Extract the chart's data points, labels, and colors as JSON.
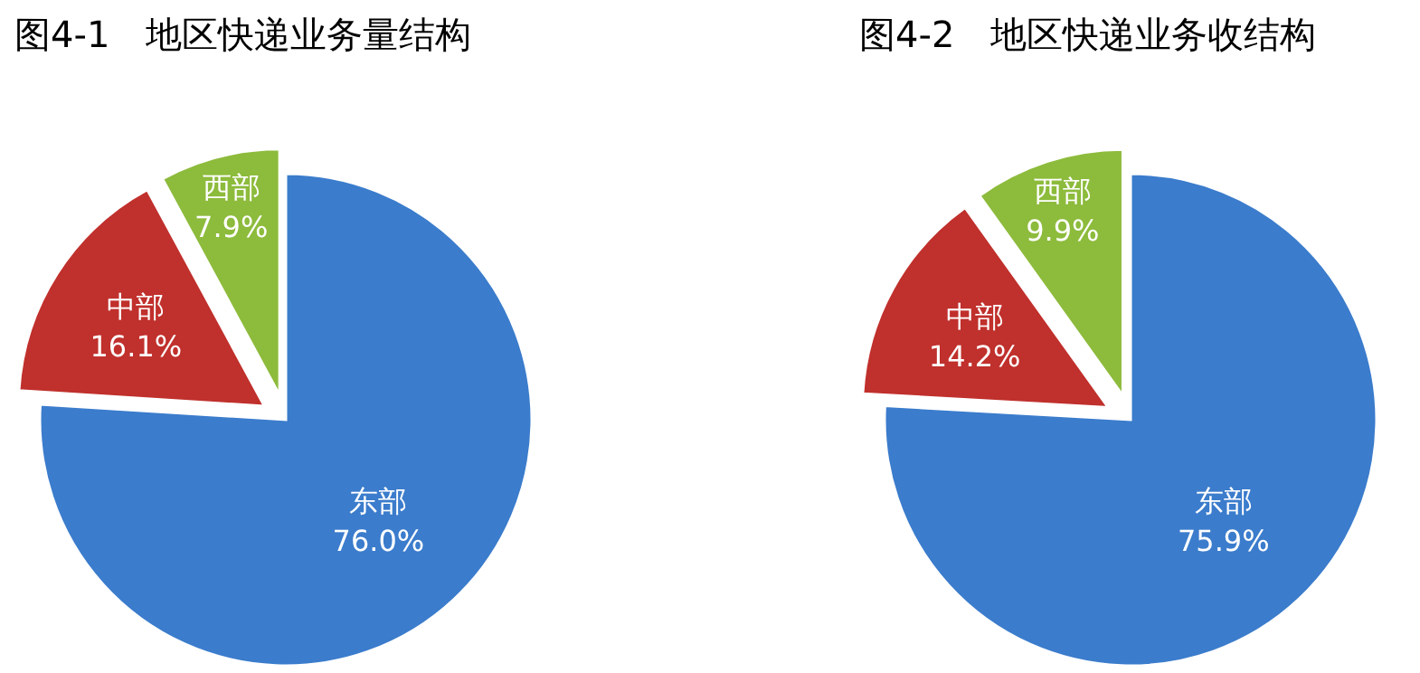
{
  "chart_data": [
    {
      "type": "pie",
      "title": "图4-1　地区快递业务量结构",
      "categories": [
        "东部",
        "中部",
        "西部"
      ],
      "values": [
        76.0,
        16.1,
        7.9
      ],
      "colors": [
        "#3b7ccc",
        "#c0302c",
        "#8dbb3c"
      ],
      "value_labels": [
        "76.0%",
        "16.1%",
        "7.9%"
      ]
    },
    {
      "type": "pie",
      "title": "图4-2　地区快递业务收结构",
      "categories": [
        "东部",
        "中部",
        "西部"
      ],
      "values": [
        75.9,
        14.2,
        9.9
      ],
      "colors": [
        "#3b7ccc",
        "#c0302c",
        "#8dbb3c"
      ],
      "value_labels": [
        "75.9%",
        "14.2%",
        "9.9%"
      ]
    }
  ]
}
